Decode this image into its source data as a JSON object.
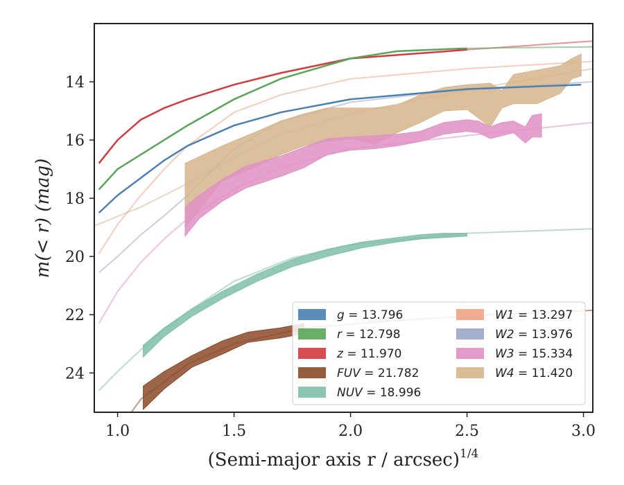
{
  "chart_data": {
    "type": "area",
    "xlabel": "(Semi-major axis r / arcsec)",
    "xlabel_sup": "1/4",
    "ylabel": "m(< r) (mag)",
    "xlim": [
      0.9,
      3.04
    ],
    "ylim": [
      25.35,
      12.0
    ],
    "y_inverted": true,
    "grid": false,
    "legend_position": "lower-right",
    "xticks": [
      1.0,
      1.5,
      2.0,
      2.5,
      3.0
    ],
    "xtick_labels": [
      "1.0",
      "1.5",
      "2.0",
      "2.5",
      "3.0"
    ],
    "yticks": [
      14,
      16,
      18,
      20,
      22,
      24
    ],
    "ytick_labels": [
      "14",
      "16",
      "18",
      "20",
      "22",
      "24"
    ],
    "series": [
      {
        "name": "W4",
        "legend_sym": "W4",
        "legend_val": "= 11.420",
        "color": "#d6b58c",
        "model": [
          [
            0.9,
            18.95
          ],
          [
            1.1,
            18.3
          ],
          [
            1.3,
            17.5
          ],
          [
            1.5,
            16.6
          ],
          [
            1.7,
            15.8
          ],
          [
            2.0,
            15.1
          ],
          [
            2.3,
            14.6
          ],
          [
            2.6,
            14.15
          ],
          [
            3.04,
            13.55
          ]
        ],
        "band_x": [
          1.29,
          1.45,
          1.6,
          1.7,
          1.8,
          1.9,
          2.0,
          2.1,
          2.2,
          2.3,
          2.4,
          2.5,
          2.6,
          2.65,
          2.7,
          2.8,
          2.9,
          2.95,
          2.99
        ],
        "band_lo": [
          16.8,
          16.2,
          15.7,
          15.35,
          15.1,
          14.9,
          14.9,
          14.9,
          14.8,
          14.45,
          14.2,
          14.1,
          14.05,
          14.3,
          13.75,
          13.6,
          13.45,
          13.2,
          13.05
        ],
        "band_hi": [
          19.0,
          17.4,
          16.9,
          16.5,
          16.2,
          16.05,
          15.95,
          16.15,
          15.75,
          15.4,
          15.0,
          14.95,
          15.55,
          14.9,
          14.75,
          14.75,
          14.4,
          13.9,
          13.8
        ]
      },
      {
        "name": "W3",
        "legend_sym": "W3",
        "legend_val": "= 15.334",
        "color": "#e090c6",
        "model": [
          [
            0.92,
            22.3
          ],
          [
            1.0,
            21.2
          ],
          [
            1.1,
            20.2
          ],
          [
            1.2,
            19.4
          ],
          [
            1.3,
            18.7
          ],
          [
            1.5,
            17.7
          ],
          [
            1.7,
            16.95
          ],
          [
            2.0,
            16.3
          ],
          [
            2.5,
            15.85
          ],
          [
            3.04,
            15.4
          ]
        ],
        "band_x": [
          1.29,
          1.35,
          1.45,
          1.55,
          1.7,
          1.8,
          1.9,
          2.0,
          2.1,
          2.2,
          2.3,
          2.4,
          2.5,
          2.55,
          2.6,
          2.65,
          2.7,
          2.75,
          2.78,
          2.82
        ],
        "band_lo": [
          18.3,
          17.9,
          17.35,
          16.9,
          16.55,
          16.25,
          15.95,
          15.9,
          15.85,
          15.8,
          15.7,
          15.4,
          15.3,
          15.35,
          15.55,
          15.4,
          15.35,
          15.55,
          15.15,
          15.1
        ],
        "band_hi": [
          19.3,
          18.7,
          18.1,
          17.65,
          17.25,
          16.95,
          16.5,
          16.35,
          16.3,
          16.2,
          16.05,
          15.8,
          15.7,
          15.75,
          15.95,
          15.85,
          15.75,
          16.1,
          15.9,
          15.9
        ]
      },
      {
        "name": "W2",
        "legend_sym": "W2",
        "legend_val": "= 13.976",
        "color": "#9aa6c8",
        "model": [
          [
            0.92,
            20.55
          ],
          [
            1.0,
            20.0
          ],
          [
            1.1,
            19.25
          ],
          [
            1.2,
            18.6
          ],
          [
            1.3,
            17.9
          ],
          [
            1.5,
            16.3
          ],
          [
            1.7,
            15.35
          ],
          [
            2.0,
            14.7
          ],
          [
            2.5,
            14.25
          ],
          [
            3.04,
            14.0
          ]
        ]
      },
      {
        "name": "W1",
        "legend_sym": "W1",
        "legend_val": "= 13.297",
        "color": "#eea284",
        "model": [
          [
            0.92,
            19.9
          ],
          [
            1.0,
            18.9
          ],
          [
            1.1,
            17.9
          ],
          [
            1.2,
            17.0
          ],
          [
            1.3,
            16.2
          ],
          [
            1.5,
            15.05
          ],
          [
            1.7,
            14.45
          ],
          [
            2.0,
            13.9
          ],
          [
            2.5,
            13.55
          ],
          [
            3.04,
            13.3
          ]
        ]
      },
      {
        "name": "z",
        "legend_sym": "z",
        "legend_val": "= 11.970",
        "color": "#d33a3e",
        "model": [
          [
            0.92,
            16.8
          ],
          [
            1.0,
            16.0
          ],
          [
            1.1,
            15.3
          ],
          [
            1.2,
            14.9
          ],
          [
            1.3,
            14.6
          ],
          [
            1.5,
            14.1
          ],
          [
            1.7,
            13.7
          ],
          [
            2.0,
            13.2
          ],
          [
            2.5,
            12.9
          ],
          [
            3.04,
            12.6
          ]
        ]
      },
      {
        "name": "r",
        "legend_sym": "r",
        "legend_val": "= 12.798",
        "color": "#5aa55a",
        "model": [
          [
            0.92,
            17.7
          ],
          [
            1.0,
            17.0
          ],
          [
            1.1,
            16.5
          ],
          [
            1.2,
            16.0
          ],
          [
            1.3,
            15.5
          ],
          [
            1.5,
            14.6
          ],
          [
            1.7,
            13.9
          ],
          [
            2.0,
            13.2
          ],
          [
            2.2,
            12.95
          ],
          [
            2.5,
            12.85
          ],
          [
            3.04,
            12.8
          ]
        ]
      },
      {
        "name": "g",
        "legend_sym": "g",
        "legend_val": "= 13.796",
        "color": "#4a7fb2",
        "model": [
          [
            0.92,
            18.5
          ],
          [
            1.0,
            17.9
          ],
          [
            1.1,
            17.3
          ],
          [
            1.2,
            16.7
          ],
          [
            1.3,
            16.2
          ],
          [
            1.5,
            15.5
          ],
          [
            1.7,
            15.05
          ],
          [
            2.0,
            14.6
          ],
          [
            2.5,
            14.25
          ],
          [
            2.99,
            14.1
          ]
        ]
      },
      {
        "name": "NUV",
        "legend_sym": "NUV",
        "legend_val": "= 18.996",
        "color": "#7fbfa8",
        "model": [
          [
            0.92,
            24.6
          ],
          [
            1.0,
            23.95
          ],
          [
            1.1,
            23.2
          ],
          [
            1.2,
            22.5
          ],
          [
            1.3,
            21.9
          ],
          [
            1.5,
            20.85
          ],
          [
            1.75,
            20.05
          ],
          [
            2.0,
            19.6
          ],
          [
            2.5,
            19.2
          ],
          [
            3.04,
            19.05
          ]
        ],
        "band_x": [
          1.11,
          1.2,
          1.32,
          1.45,
          1.6,
          1.75,
          1.9,
          2.05,
          2.2,
          2.3,
          2.4,
          2.5
        ],
        "band_lo": [
          23.05,
          22.45,
          21.8,
          21.2,
          20.6,
          20.1,
          19.75,
          19.5,
          19.35,
          19.25,
          19.2,
          19.2
        ],
        "band_hi": [
          23.45,
          22.75,
          22.05,
          21.45,
          20.85,
          20.35,
          20.0,
          19.7,
          19.5,
          19.4,
          19.35,
          19.3
        ]
      },
      {
        "name": "FUV",
        "legend_sym": "FUV",
        "legend_val": "= 21.782",
        "color": "#8b4a2a",
        "model": [
          [
            1.0,
            26.0
          ],
          [
            1.1,
            24.9
          ],
          [
            1.3,
            23.7
          ],
          [
            1.5,
            23.0
          ],
          [
            1.8,
            22.45
          ],
          [
            2.2,
            22.2
          ],
          [
            2.6,
            22.0
          ],
          [
            3.04,
            21.85
          ]
        ],
        "band_x": [
          1.11,
          1.2,
          1.32,
          1.45,
          1.56,
          1.7,
          1.8
        ],
        "band_lo": [
          24.45,
          23.95,
          23.4,
          22.9,
          22.6,
          22.45,
          22.3
        ],
        "band_hi": [
          25.25,
          24.55,
          23.8,
          23.35,
          22.95,
          22.8,
          22.65
        ]
      }
    ]
  }
}
